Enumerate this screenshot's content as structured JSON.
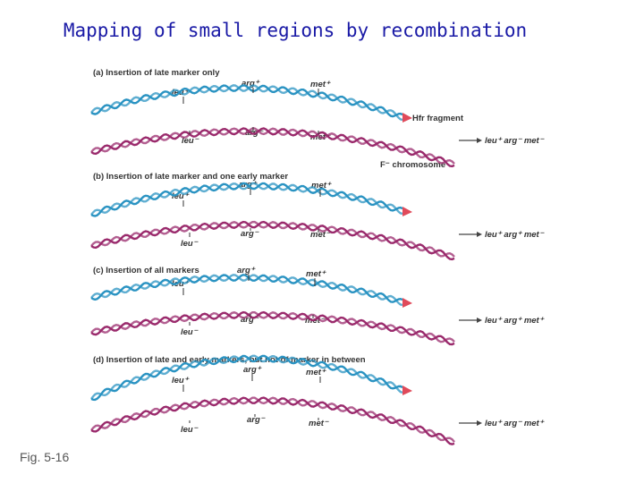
{
  "title": "Mapping of small regions by recombination",
  "caption": "Fig. 5-16",
  "colors": {
    "hfr": "#2a93c2",
    "fminus": "#9a2a6c",
    "arrow": "#e04a5a",
    "text": "#333333",
    "title": "#1a1aa6"
  },
  "annotations": {
    "hfr_fragment": "Hfr fragment",
    "f_chromosome": "F⁻ chromosome"
  },
  "panels": [
    {
      "label": "(a) Insertion of late marker only",
      "top": {
        "leu": "leu⁺",
        "arg": "arg⁺",
        "met": "met⁺"
      },
      "bottom": {
        "leu": "leu⁻",
        "arg": "arg⁻",
        "met": "met⁻"
      },
      "result": "leu⁺ arg⁻ met⁻"
    },
    {
      "label": "(b) Insertion of late marker and one early marker",
      "top": {
        "leu": "leu⁺",
        "arg": "arg⁺",
        "met": "met⁺"
      },
      "bottom": {
        "leu": "leu⁻",
        "arg": "arg⁻",
        "met": "met⁻"
      },
      "result": "leu⁺ arg⁺ met⁻"
    },
    {
      "label": "(c) Insertion of all markers",
      "top": {
        "leu": "leu⁺",
        "arg": "arg⁺",
        "met": "met⁺"
      },
      "bottom": {
        "leu": "leu⁻",
        "arg": "arg⁻",
        "met": "met⁻"
      },
      "result": "leu⁺ arg⁺ met⁺"
    },
    {
      "label": "(d) Insertion of late and early markers, but not of marker in between",
      "top": {
        "leu": "leu⁺",
        "arg": "arg⁺",
        "met": "met⁺"
      },
      "bottom": {
        "leu": "leu⁻",
        "arg": "arg⁻",
        "met": "met⁻"
      },
      "result": "leu⁺ arg⁻ met⁺"
    }
  ]
}
